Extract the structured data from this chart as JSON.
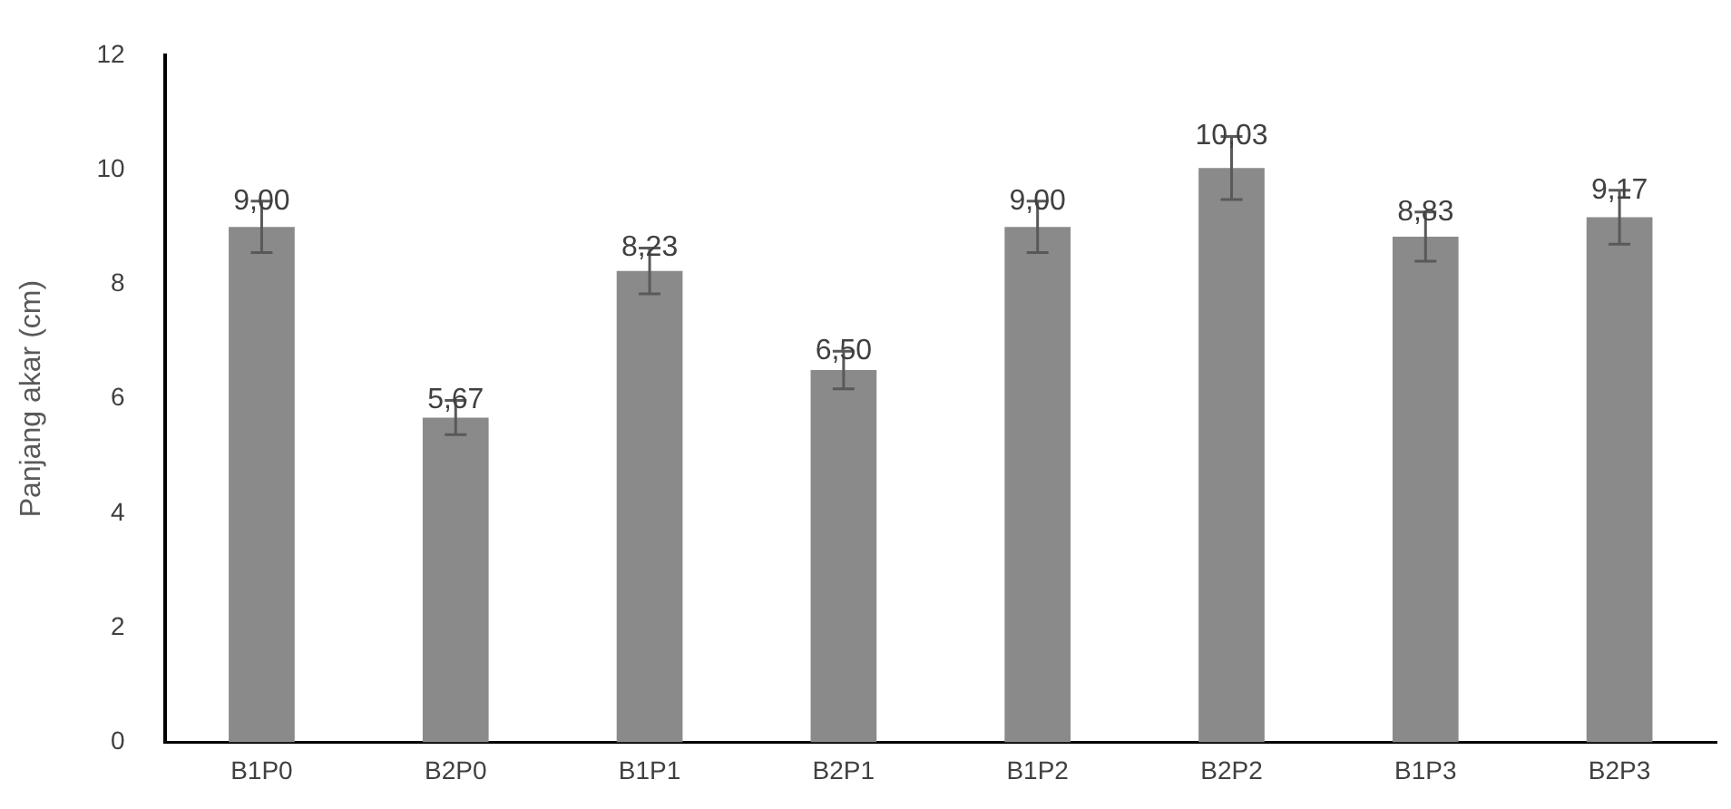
{
  "chart_data": {
    "type": "bar",
    "ylabel": "Panjang akar (cm)",
    "categories": [
      "B1P0",
      "B2P0",
      "B1P1",
      "B2P1",
      "B1P2",
      "B2P2",
      "B1P3",
      "B2P3"
    ],
    "values": [
      9.0,
      5.67,
      8.23,
      6.5,
      9.0,
      10.03,
      8.83,
      9.17
    ],
    "errors": [
      0.45,
      0.3,
      0.4,
      0.33,
      0.45,
      0.55,
      0.43,
      0.47
    ],
    "value_labels": [
      "9,00",
      "5,67",
      "8,23",
      "6,50",
      "9,00",
      "10,03",
      "8,83",
      "9,17"
    ],
    "color": "#8a8a8a",
    "ylim": [
      0,
      12
    ],
    "yticks": [
      0,
      2,
      4,
      6,
      8,
      10,
      12
    ],
    "grid": false,
    "legend": false
  }
}
